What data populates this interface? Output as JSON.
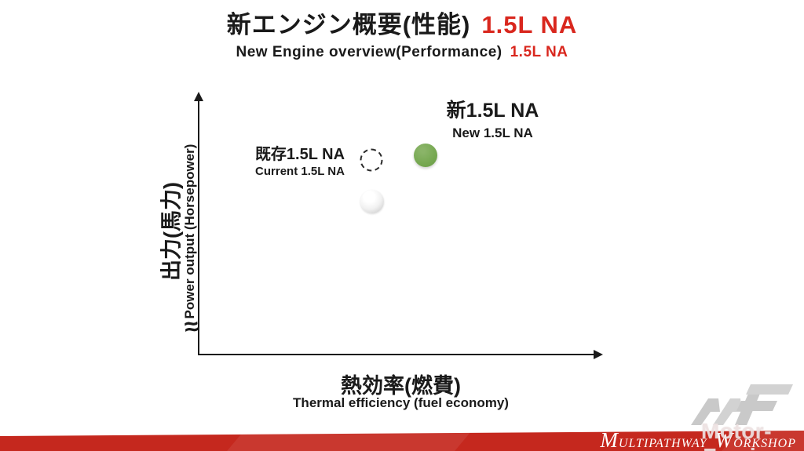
{
  "header": {
    "title_jp": "新エンジン概要(性能)",
    "title_highlight": "1.5L NA",
    "subtitle_en": "New Engine overview(Performance)",
    "subtitle_highlight": "1.5L NA"
  },
  "chart_data": {
    "type": "scatter",
    "title": "",
    "xlabel_jp": "熱効率(燃費)",
    "xlabel_en": "Thermal efficiency (fuel economy)",
    "ylabel_jp": "出力(馬力)",
    "ylabel_en": "Power output (Horsepower)",
    "axes": {
      "numeric_ticks": false,
      "x_arrow": true,
      "y_arrow": true,
      "y_axis_break_symbol": "≈",
      "note": "conceptual plot without numeric scales; point positions are percent of plot area, y measured from top"
    },
    "points": [
      {
        "name": "current-engine-ghost",
        "marker": "dashed-outline-circle",
        "x_pct": 42.7,
        "y_pct": 24.6,
        "label_jp": "既存1.5L NA",
        "label_en": "Current 1.5L NA"
      },
      {
        "name": "current-engine",
        "marker": "white-sphere",
        "x_pct": 42.9,
        "y_pct": 40.6
      },
      {
        "name": "new-engine",
        "marker": "green-filled-circle",
        "x_pct": 56.1,
        "y_pct": 22.7,
        "label_jp": "新1.5L NA",
        "label_en": "New 1.5L NA",
        "color": "#76a851"
      }
    ],
    "legend_position": "none",
    "grid": false
  },
  "footer": {
    "banner": {
      "word1_initial": "M",
      "word1_rest": "ULTIPATHWAY",
      "word2_initial": "W",
      "word2_rest": "ORKSHOP",
      "color": "#c5281e"
    },
    "watermark": {
      "logo": "MF-logo",
      "text": "Motor-Fan.jp"
    }
  },
  "colors": {
    "accent_red": "#d9271e",
    "marker_green": "#76a851",
    "banner_red": "#c5281e",
    "axis_black": "#1a1a1a"
  }
}
